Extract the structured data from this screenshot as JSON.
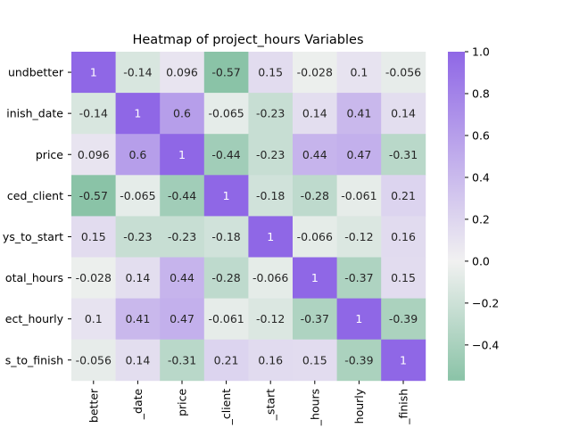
{
  "chart_data": {
    "type": "heatmap",
    "title": "Heatmap of project_hours Variables",
    "row_labels": [
      "undbetter",
      "inish_date",
      "price",
      "ced_client",
      "ys_to_start",
      "otal_hours",
      "ect_hourly",
      "s_to_finish"
    ],
    "col_labels": [
      "better",
      "_date",
      "price",
      "_client",
      "_start",
      "_hours",
      "hourly",
      "_finish"
    ],
    "values": [
      [
        1,
        -0.14,
        0.096,
        -0.57,
        0.15,
        -0.028,
        0.1,
        -0.056
      ],
      [
        -0.14,
        1,
        0.6,
        -0.065,
        -0.23,
        0.14,
        0.41,
        0.14
      ],
      [
        0.096,
        0.6,
        1,
        -0.44,
        -0.23,
        0.44,
        0.47,
        -0.31
      ],
      [
        -0.57,
        -0.065,
        -0.44,
        1,
        -0.18,
        -0.28,
        -0.061,
        0.21
      ],
      [
        0.15,
        -0.23,
        -0.23,
        -0.18,
        1,
        -0.066,
        -0.12,
        0.16
      ],
      [
        -0.028,
        0.14,
        0.44,
        -0.28,
        -0.066,
        1,
        -0.37,
        0.15
      ],
      [
        0.1,
        0.41,
        0.47,
        -0.061,
        -0.12,
        -0.37,
        1,
        -0.39
      ],
      [
        -0.056,
        0.14,
        -0.31,
        0.21,
        0.16,
        0.15,
        -0.39,
        1
      ]
    ],
    "value_labels": [
      [
        "1",
        "-0.14",
        "0.096",
        "-0.57",
        "0.15",
        "-0.028",
        "0.1",
        "-0.056"
      ],
      [
        "-0.14",
        "1",
        "0.6",
        "-0.065",
        "-0.23",
        "0.14",
        "0.41",
        "0.14"
      ],
      [
        "0.096",
        "0.6",
        "1",
        "-0.44",
        "-0.23",
        "0.44",
        "0.47",
        "-0.31"
      ],
      [
        "-0.57",
        "-0.065",
        "-0.44",
        "1",
        "-0.18",
        "-0.28",
        "-0.061",
        "0.21"
      ],
      [
        "0.15",
        "-0.23",
        "-0.23",
        "-0.18",
        "1",
        "-0.066",
        "-0.12",
        "0.16"
      ],
      [
        "-0.028",
        "0.14",
        "0.44",
        "-0.28",
        "-0.066",
        "1",
        "-0.37",
        "0.15"
      ],
      [
        "0.1",
        "0.41",
        "0.47",
        "-0.061",
        "-0.12",
        "-0.37",
        "1",
        "-0.39"
      ],
      [
        "-0.056",
        "0.14",
        "-0.31",
        "0.21",
        "0.16",
        "0.15",
        "-0.39",
        "1"
      ]
    ],
    "colorbar": {
      "vmin": -0.57,
      "vmax": 1.0,
      "ticks": [
        -0.4,
        -0.2,
        0.0,
        0.2,
        0.4,
        0.6,
        0.8,
        1.0
      ],
      "tick_labels": [
        "−0.4",
        "−0.2",
        "0.0",
        "0.2",
        "0.4",
        "0.6",
        "0.8",
        "1.0"
      ]
    },
    "colors": {
      "low": "#8ac3a7",
      "mid": "#f1f1f1",
      "high": "#8f67e6"
    }
  }
}
